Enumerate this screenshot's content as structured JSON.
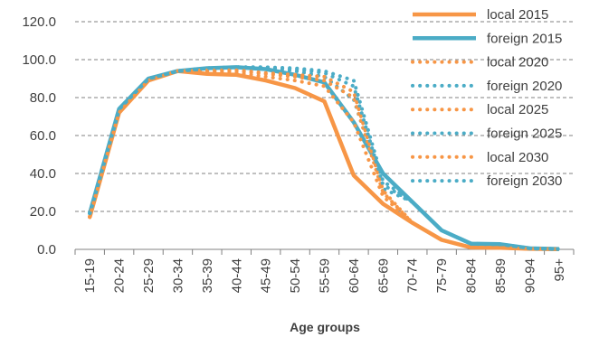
{
  "chart_data": {
    "type": "line",
    "title": "",
    "xlabel": "Age groups",
    "ylabel": "",
    "ylim": [
      0,
      120
    ],
    "yticks": [
      "0.0",
      "20.0",
      "40.0",
      "60.0",
      "80.0",
      "100.0",
      "120.0"
    ],
    "grid": "horizontal dashed",
    "legend_position": "top-right",
    "categories": [
      "15-19",
      "20-24",
      "25-29",
      "30-34",
      "35-39",
      "40-44",
      "45-49",
      "50-54",
      "55-59",
      "60-64",
      "65-69",
      "70-74",
      "75-79",
      "80-84",
      "85-89",
      "90-94",
      "95+"
    ],
    "colors": {
      "local": "#F79646",
      "foreign": "#4BACC6"
    },
    "series": [
      {
        "name": "local 2015",
        "group": "local",
        "style": "solid",
        "values": [
          17,
          72,
          89,
          94,
          92.5,
          92,
          89,
          85,
          78,
          39,
          24,
          14,
          5,
          1,
          0.8,
          0.3,
          0.1
        ]
      },
      {
        "name": "foreign 2015",
        "group": "foreign",
        "style": "solid",
        "values": [
          19,
          74,
          90,
          94,
          95.5,
          96,
          95,
          92,
          88,
          67,
          40,
          25,
          10,
          3,
          2.7,
          0.5,
          0.2
        ]
      },
      {
        "name": "local 2020",
        "group": "local",
        "style": "dotted",
        "values": [
          17,
          72,
          89,
          94,
          93.5,
          93,
          91,
          89,
          86,
          67,
          28,
          14,
          5,
          1,
          0.8,
          0.3,
          0.1
        ]
      },
      {
        "name": "foreign 2020",
        "group": "foreign",
        "style": "dotted",
        "values": [
          19,
          74,
          90,
          94,
          95.5,
          96,
          96,
          94,
          91,
          79,
          32,
          25,
          10,
          3,
          2.7,
          0.5,
          0.2
        ]
      },
      {
        "name": "local 2025",
        "group": "local",
        "style": "dotted",
        "values": [
          17,
          72,
          89,
          94,
          94,
          94,
          92.5,
          91,
          89,
          80,
          30,
          14,
          5,
          1,
          0.8,
          0.3,
          0.1
        ]
      },
      {
        "name": "foreign 2025",
        "group": "foreign",
        "style": "dotted",
        "values": [
          19,
          74,
          90,
          94,
          95.5,
          96,
          96,
          95,
          93,
          86,
          34,
          25,
          10,
          3,
          2.7,
          0.5,
          0.2
        ]
      },
      {
        "name": "local 2030",
        "group": "local",
        "style": "dotted",
        "values": [
          17,
          72,
          89,
          94,
          94.5,
          94.5,
          93,
          92,
          91,
          83,
          31,
          14,
          5,
          1,
          0.8,
          0.3,
          0.1
        ]
      },
      {
        "name": "foreign 2030",
        "group": "foreign",
        "style": "dotted",
        "values": [
          19,
          74,
          90,
          94,
          95.5,
          96,
          96,
          95.5,
          94,
          89,
          36,
          25,
          10,
          3,
          2.7,
          0.5,
          0.2
        ]
      }
    ]
  }
}
